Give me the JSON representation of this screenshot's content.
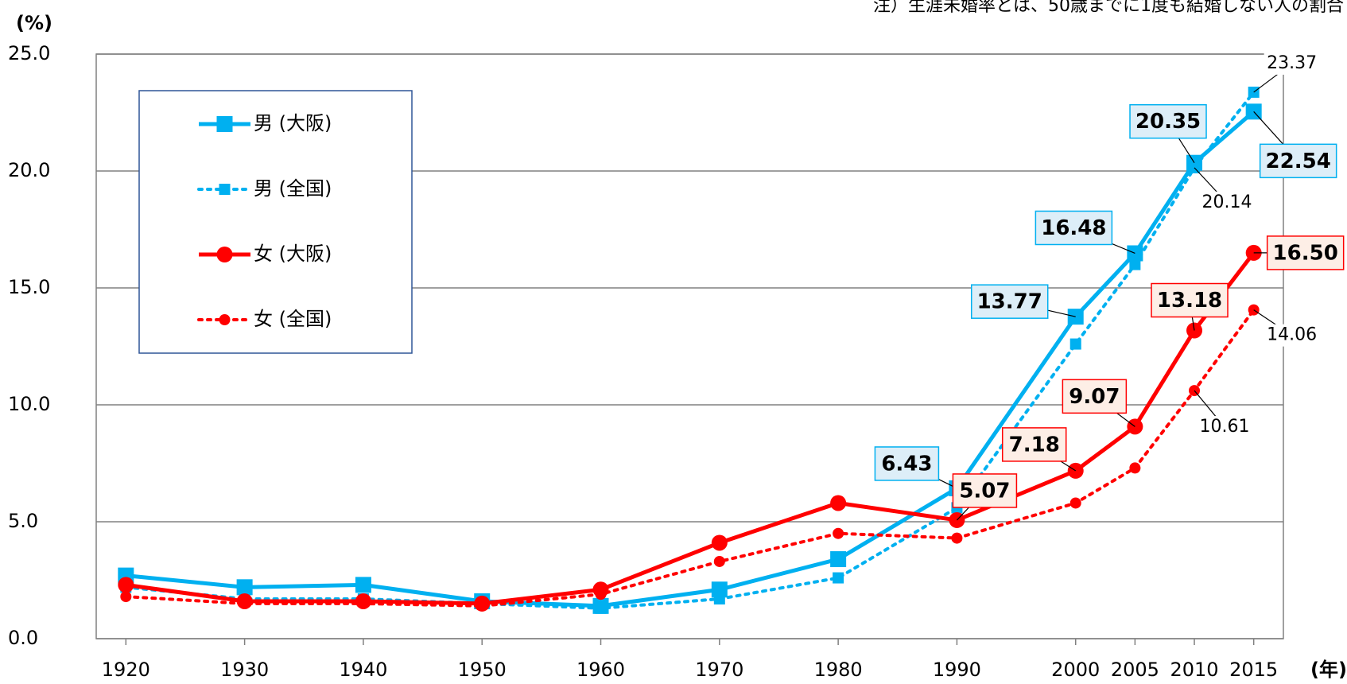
{
  "chart_data": {
    "type": "line",
    "y_unit_label": "(%)",
    "x_unit_label": "(年)",
    "note": "注）生涯未婚率とは、50歳までに1度も結婚しない人の割合",
    "x": [
      1920,
      1930,
      1940,
      1950,
      1960,
      1970,
      1980,
      1990,
      2000,
      2005,
      2010,
      2015
    ],
    "xlim": [
      1917.5,
      2017.5
    ],
    "xticks": [
      1920,
      1930,
      1940,
      1950,
      1960,
      1970,
      1980,
      1990,
      2000,
      2005,
      2010,
      2015
    ],
    "ylim": [
      0,
      25
    ],
    "yticks": [
      {
        "value": 0,
        "label": "0.0"
      },
      {
        "value": 5,
        "label": "5.0"
      },
      {
        "value": 10,
        "label": "10.0"
      },
      {
        "value": 15,
        "label": "15.0"
      },
      {
        "value": 20,
        "label": "20.0"
      },
      {
        "value": 25,
        "label": "25.0"
      }
    ],
    "grid": true,
    "legend": "upper left",
    "series": [
      {
        "name": "男 (大阪)",
        "color": "#00b0f0",
        "dash": false,
        "marker": "square",
        "values": [
          2.7,
          2.2,
          2.3,
          1.6,
          1.4,
          2.1,
          3.4,
          6.43,
          13.77,
          16.48,
          20.35,
          22.54
        ],
        "value_labels": [
          null,
          null,
          null,
          null,
          null,
          null,
          null,
          "6.43",
          "13.77",
          "16.48",
          "20.35",
          "22.54"
        ]
      },
      {
        "name": "男 (全国)",
        "color": "#00b0f0",
        "dash": true,
        "marker": "square",
        "values": [
          2.2,
          1.7,
          1.7,
          1.5,
          1.3,
          1.7,
          2.6,
          5.6,
          12.6,
          16.0,
          20.14,
          23.37
        ],
        "value_labels": [
          null,
          null,
          null,
          null,
          null,
          null,
          null,
          null,
          null,
          null,
          "20.14",
          "23.37"
        ]
      },
      {
        "name": "女 (大阪)",
        "color": "#ff0000",
        "dash": false,
        "marker": "circle",
        "values": [
          2.3,
          1.6,
          1.6,
          1.5,
          2.1,
          4.1,
          5.8,
          5.07,
          7.18,
          9.07,
          13.18,
          16.5
        ],
        "value_labels": [
          null,
          null,
          null,
          null,
          null,
          null,
          null,
          "5.07",
          "7.18",
          "9.07",
          "13.18",
          "16.50"
        ]
      },
      {
        "name": "女 (全国)",
        "color": "#ff0000",
        "dash": true,
        "marker": "circle",
        "values": [
          1.8,
          1.5,
          1.5,
          1.4,
          1.9,
          3.3,
          4.5,
          4.3,
          5.8,
          7.3,
          10.61,
          14.06
        ],
        "value_labels": [
          null,
          null,
          null,
          null,
          null,
          null,
          null,
          null,
          null,
          null,
          "10.61",
          "14.06"
        ]
      }
    ]
  }
}
